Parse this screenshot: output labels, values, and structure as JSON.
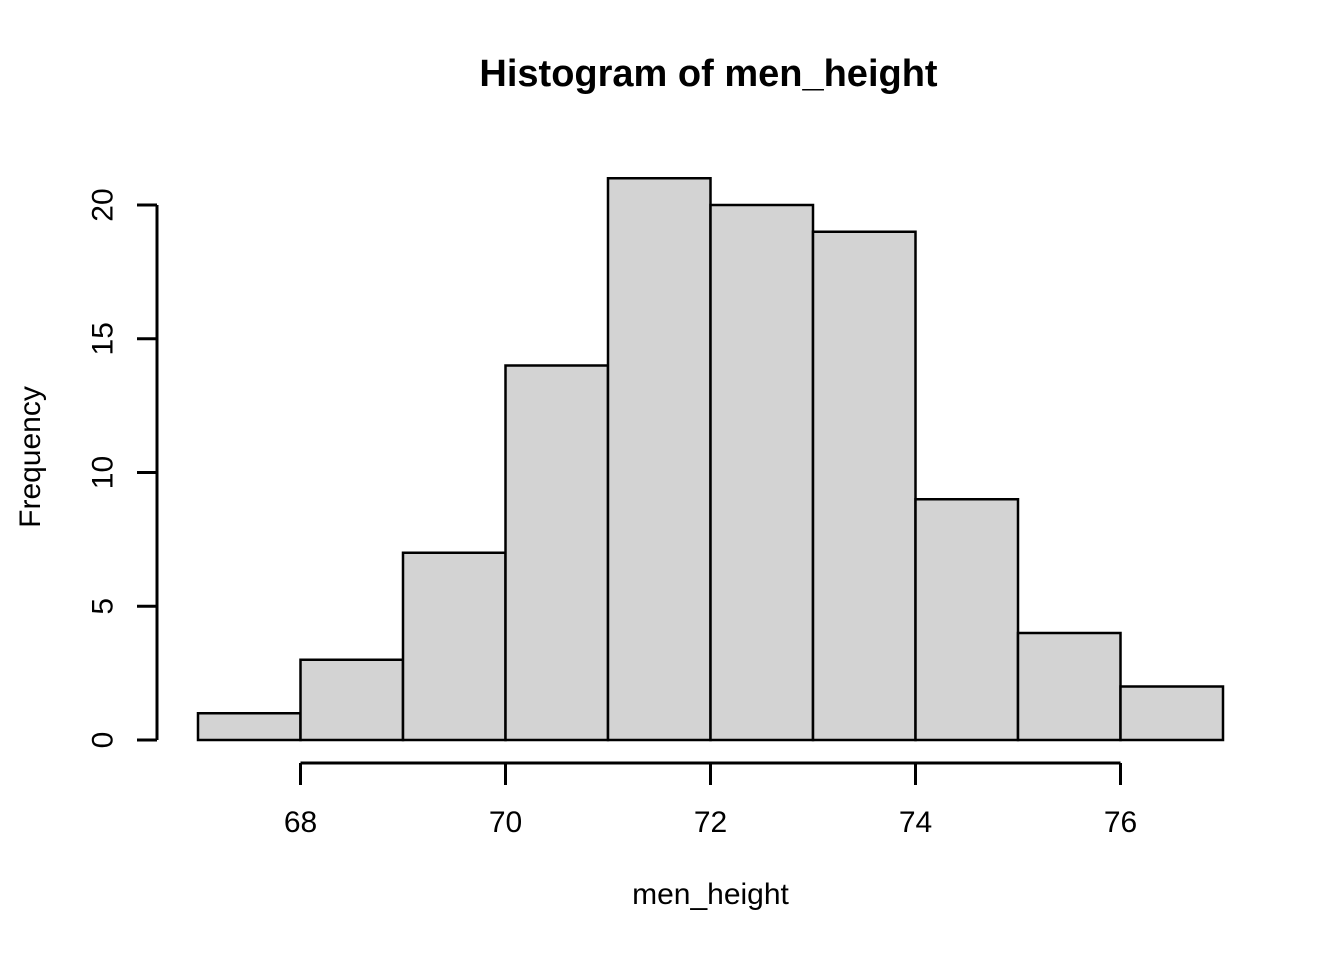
{
  "chart_data": {
    "type": "bar",
    "subtype": "histogram",
    "title": "Histogram of men_height",
    "xlabel": "men_height",
    "ylabel": "Frequency",
    "bin_edges": [
      67,
      68,
      69,
      70,
      71,
      72,
      73,
      74,
      75,
      76,
      77
    ],
    "frequencies": [
      1,
      3,
      7,
      14,
      21,
      20,
      19,
      9,
      4,
      2
    ],
    "x_ticks": [
      68,
      70,
      72,
      74,
      76
    ],
    "y_ticks": [
      0,
      5,
      10,
      15,
      20
    ],
    "xlim": [
      67,
      77
    ],
    "ylim": [
      0,
      21
    ],
    "grid": false,
    "legend_position": "none",
    "colors": {
      "bar_fill": "#d3d3d3",
      "bar_border": "#000000",
      "axis": "#000000",
      "text": "#000000",
      "background": "#ffffff"
    }
  }
}
